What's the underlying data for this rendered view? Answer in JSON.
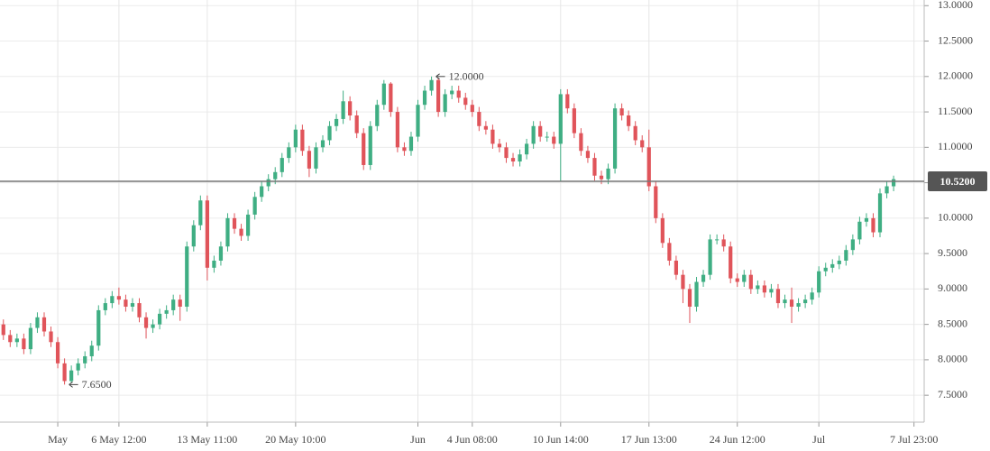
{
  "chart_data": {
    "type": "candlestick",
    "categories": [
      null,
      null,
      null,
      null,
      null,
      null,
      null,
      null,
      "May",
      null,
      null,
      null,
      null,
      null,
      null,
      null,
      null,
      "6 May 12:00",
      null,
      null,
      null,
      null,
      null,
      null,
      null,
      null,
      null,
      null,
      null,
      null,
      "13 May 11:00",
      null,
      null,
      null,
      null,
      null,
      null,
      null,
      null,
      null,
      null,
      null,
      null,
      "20 May 10:00",
      null,
      null,
      null,
      null,
      null,
      null,
      null,
      null,
      null,
      null,
      null,
      null,
      null,
      null,
      null,
      null,
      null,
      "Jun",
      null,
      null,
      null,
      null,
      null,
      null,
      null,
      "4 Jun 08:00",
      null,
      null,
      null,
      null,
      null,
      null,
      null,
      null,
      null,
      null,
      null,
      null,
      "10 Jun 14:00",
      null,
      null,
      null,
      null,
      null,
      null,
      null,
      null,
      null,
      null,
      null,
      null,
      "17 Jun 13:00",
      null,
      null,
      null,
      null,
      null,
      null,
      null,
      null,
      null,
      null,
      null,
      null,
      "24 Jun 12:00",
      null,
      null,
      null,
      null,
      null,
      null,
      null,
      null,
      null,
      null,
      null,
      "Jul",
      null,
      null,
      null,
      null,
      null,
      null,
      null,
      null,
      null,
      null,
      null,
      null,
      null,
      "7 Jul 23:00",
      null
    ],
    "open": [
      8.5,
      8.35,
      8.25,
      8.3,
      8.15,
      8.45,
      8.6,
      8.4,
      8.25,
      7.95,
      7.7,
      7.85,
      7.95,
      8.05,
      8.2,
      8.7,
      8.8,
      8.9,
      8.85,
      8.75,
      8.8,
      8.6,
      8.45,
      8.5,
      8.65,
      8.7,
      8.85,
      8.75,
      9.6,
      9.9,
      10.25,
      9.3,
      9.4,
      9.6,
      10.0,
      9.85,
      9.75,
      10.05,
      10.3,
      10.45,
      10.55,
      10.65,
      10.85,
      11.0,
      11.25,
      10.95,
      10.7,
      11.0,
      11.1,
      11.3,
      11.4,
      11.65,
      11.45,
      11.2,
      10.75,
      11.3,
      11.6,
      11.9,
      11.5,
      11.0,
      10.95,
      11.15,
      11.6,
      11.8,
      11.95,
      11.5,
      11.75,
      11.8,
      11.7,
      11.6,
      11.5,
      11.3,
      11.25,
      11.05,
      11.0,
      10.85,
      10.8,
      10.9,
      11.05,
      11.3,
      11.15,
      11.15,
      11.05,
      11.75,
      11.55,
      11.2,
      10.95,
      10.85,
      10.6,
      10.55,
      10.7,
      11.55,
      11.45,
      11.3,
      11.1,
      11.0,
      10.45,
      10.0,
      9.65,
      9.4,
      9.2,
      9.0,
      8.75,
      9.1,
      9.2,
      9.7,
      9.7,
      9.6,
      9.15,
      9.1,
      9.2,
      9.0,
      9.05,
      8.95,
      9.0,
      8.8,
      8.85,
      8.75,
      8.8,
      8.85,
      8.95,
      9.25,
      9.3,
      9.35,
      9.4,
      9.55,
      9.7,
      9.95,
      10.0,
      9.8,
      10.35,
      10.45,
      null,
      null,
      null,
      null
    ],
    "high": [
      8.57,
      8.42,
      8.37,
      8.37,
      8.52,
      8.67,
      8.67,
      8.47,
      8.32,
      8.02,
      7.92,
      8.02,
      8.12,
      8.27,
      8.77,
      8.87,
      8.97,
      9.02,
      8.92,
      8.87,
      8.87,
      8.67,
      8.57,
      8.72,
      8.77,
      8.92,
      8.92,
      9.67,
      9.97,
      10.32,
      10.32,
      9.47,
      9.67,
      10.07,
      10.07,
      9.92,
      10.12,
      10.37,
      10.52,
      10.62,
      10.72,
      10.92,
      11.07,
      11.32,
      11.32,
      11.02,
      11.07,
      11.17,
      11.37,
      11.47,
      11.8,
      11.72,
      11.52,
      11.27,
      11.37,
      11.67,
      11.95,
      11.92,
      11.57,
      11.07,
      11.22,
      11.67,
      11.87,
      12.0,
      11.98,
      11.82,
      11.87,
      11.87,
      11.77,
      11.67,
      11.57,
      11.37,
      11.32,
      11.12,
      11.07,
      10.92,
      10.97,
      11.12,
      11.37,
      11.37,
      11.22,
      11.22,
      11.82,
      11.82,
      11.62,
      11.27,
      11.02,
      10.92,
      10.67,
      10.77,
      11.62,
      11.62,
      11.52,
      11.37,
      11.17,
      11.25,
      10.52,
      10.07,
      9.72,
      9.47,
      9.27,
      9.07,
      9.17,
      9.27,
      9.77,
      9.77,
      9.77,
      9.67,
      9.22,
      9.27,
      9.27,
      9.12,
      9.12,
      9.07,
      9.07,
      8.92,
      9.02,
      8.87,
      8.92,
      9.02,
      9.32,
      9.37,
      9.42,
      9.47,
      9.62,
      9.77,
      10.02,
      10.07,
      10.07,
      10.42,
      10.52,
      10.6,
      null,
      null,
      null,
      null
    ],
    "low": [
      8.28,
      8.18,
      8.18,
      8.08,
      8.08,
      8.38,
      8.33,
      8.18,
      7.88,
      7.65,
      7.68,
      7.78,
      7.88,
      7.98,
      8.13,
      8.63,
      8.73,
      8.78,
      8.68,
      8.68,
      8.53,
      8.3,
      8.38,
      8.43,
      8.58,
      8.63,
      8.55,
      8.68,
      9.53,
      9.83,
      9.12,
      9.23,
      9.33,
      9.53,
      9.78,
      9.68,
      9.68,
      9.98,
      10.23,
      10.38,
      10.48,
      10.58,
      10.78,
      10.93,
      10.88,
      10.58,
      10.63,
      10.93,
      11.03,
      11.23,
      11.33,
      11.38,
      11.13,
      10.68,
      10.68,
      11.23,
      11.53,
      11.43,
      10.93,
      10.88,
      10.88,
      11.08,
      11.53,
      11.73,
      11.43,
      11.43,
      11.68,
      11.63,
      11.53,
      11.43,
      11.23,
      11.18,
      10.98,
      10.93,
      10.78,
      10.73,
      10.73,
      10.83,
      10.98,
      11.08,
      11.08,
      10.98,
      10.52,
      11.48,
      11.13,
      10.88,
      10.78,
      10.53,
      10.48,
      10.48,
      10.63,
      11.38,
      11.23,
      11.03,
      10.93,
      10.38,
      9.93,
      9.58,
      9.33,
      9.13,
      8.8,
      8.52,
      8.68,
      9.03,
      9.13,
      9.63,
      9.53,
      9.08,
      9.03,
      9.03,
      8.93,
      8.93,
      8.88,
      8.88,
      8.73,
      8.73,
      8.52,
      8.68,
      8.73,
      8.78,
      8.88,
      9.18,
      9.23,
      9.28,
      9.33,
      9.48,
      9.63,
      9.88,
      9.73,
      9.73,
      10.28,
      10.38,
      null,
      null,
      null,
      null
    ],
    "close": [
      8.35,
      8.25,
      8.3,
      8.15,
      8.45,
      8.6,
      8.4,
      8.25,
      7.95,
      7.7,
      7.85,
      7.95,
      8.05,
      8.2,
      8.7,
      8.8,
      8.9,
      8.85,
      8.75,
      8.8,
      8.6,
      8.45,
      8.5,
      8.65,
      8.7,
      8.85,
      8.75,
      9.6,
      9.9,
      10.25,
      9.3,
      9.4,
      9.6,
      10.0,
      9.85,
      9.75,
      10.05,
      10.3,
      10.45,
      10.55,
      10.65,
      10.85,
      11.0,
      11.25,
      10.95,
      10.7,
      11.0,
      11.1,
      11.3,
      11.4,
      11.65,
      11.45,
      11.2,
      10.75,
      11.3,
      11.6,
      11.9,
      11.5,
      11.0,
      10.95,
      11.15,
      11.6,
      11.8,
      11.95,
      11.5,
      11.75,
      11.8,
      11.7,
      11.6,
      11.5,
      11.3,
      11.25,
      11.05,
      11.0,
      10.85,
      10.8,
      10.9,
      11.05,
      11.3,
      11.15,
      11.15,
      11.05,
      11.75,
      11.55,
      11.2,
      10.95,
      10.85,
      10.6,
      10.55,
      10.7,
      11.55,
      11.45,
      11.3,
      11.1,
      11.0,
      10.45,
      10.0,
      9.65,
      9.4,
      9.2,
      9.0,
      8.75,
      9.1,
      9.2,
      9.7,
      9.7,
      9.6,
      9.15,
      9.1,
      9.2,
      9.0,
      9.05,
      8.95,
      9.0,
      8.8,
      8.85,
      8.75,
      8.8,
      8.85,
      8.95,
      9.25,
      9.3,
      9.35,
      9.4,
      9.55,
      9.7,
      9.95,
      10.0,
      9.8,
      10.35,
      10.45,
      10.55,
      null,
      null,
      null,
      null
    ],
    "up_color": "#3fae83",
    "down_color": "#e0545a",
    "ylim": [
      7.12,
      13.08
    ],
    "yticks": [
      {
        "value": 7.5,
        "label": "7.5000"
      },
      {
        "value": 8,
        "label": "8.0000"
      },
      {
        "value": 8.5,
        "label": "8.5000"
      },
      {
        "value": 9,
        "label": "9.0000"
      },
      {
        "value": 9.5,
        "label": "9.5000"
      },
      {
        "value": 10,
        "label": "10.0000"
      },
      {
        "value": 10.5,
        "label": "10.5000"
      },
      {
        "value": 11,
        "label": "11.0000"
      },
      {
        "value": 11.5,
        "label": "11.5000"
      },
      {
        "value": 12,
        "label": "12.0000"
      },
      {
        "value": 12.5,
        "label": "12.5000"
      },
      {
        "value": 13,
        "label": "13.0000"
      }
    ],
    "grid": true,
    "price_line": {
      "value": 10.52,
      "label": "10.5200"
    },
    "high_marker": {
      "value": 12,
      "label": "12.0000"
    },
    "low_marker": {
      "value": 7.65,
      "label": "7.6500"
    }
  }
}
